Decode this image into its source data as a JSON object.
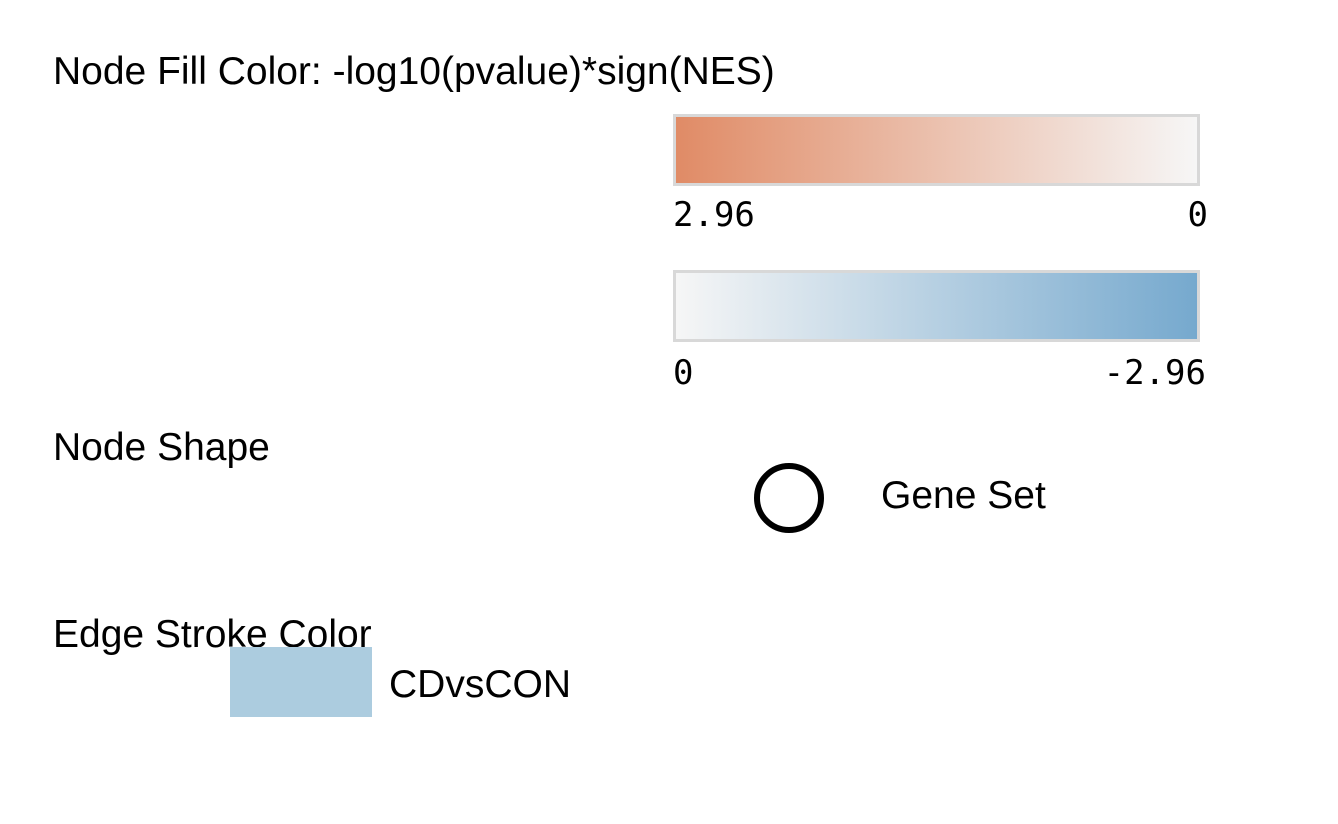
{
  "legend": {
    "node_fill": {
      "title": "Node Fill Color: -log10(pvalue)*sign(NES)",
      "positive_scale": {
        "start_label": "2.96",
        "end_label": "0",
        "start_color": "#e08b66",
        "end_color": "#f6f6f6"
      },
      "negative_scale": {
        "start_label": "0",
        "end_label": "-2.96",
        "start_color": "#f6f6f6",
        "end_color": "#76a9ce"
      }
    },
    "node_shape": {
      "title": "Node Shape",
      "items": [
        {
          "shape": "circle",
          "label": "Gene Set"
        }
      ]
    },
    "edge_stroke": {
      "title": "Edge Stroke Color",
      "items": [
        {
          "color": "#acccdf",
          "label": "CDvsCON"
        }
      ]
    }
  }
}
